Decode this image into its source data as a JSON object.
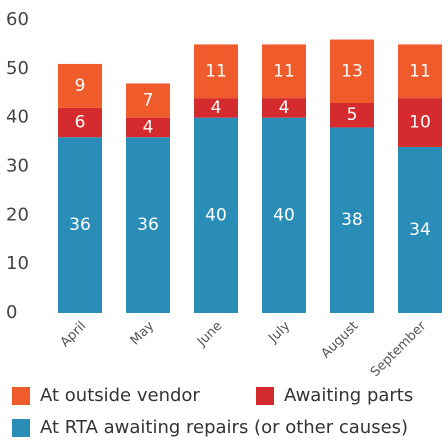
{
  "chart_data": {
    "type": "stacked_bar",
    "categories": [
      "April",
      "May",
      "June",
      "July",
      "August",
      "September"
    ],
    "series": [
      {
        "name": "At RTA awaiting repairs (or other causes)",
        "color": "#2a8db8",
        "values": [
          36,
          36,
          40,
          40,
          38,
          34
        ]
      },
      {
        "name": "Awaiting parts",
        "color": "#d52b2e",
        "values": [
          6,
          4,
          4,
          4,
          5,
          10
        ]
      },
      {
        "name": "At outside vendor",
        "color": "#ef5b2a",
        "values": [
          9,
          7,
          11,
          11,
          13,
          11
        ]
      }
    ],
    "ylim": [
      0,
      60
    ],
    "yticks": [
      0,
      10,
      20,
      30,
      40,
      50,
      60
    ],
    "grid": false
  }
}
